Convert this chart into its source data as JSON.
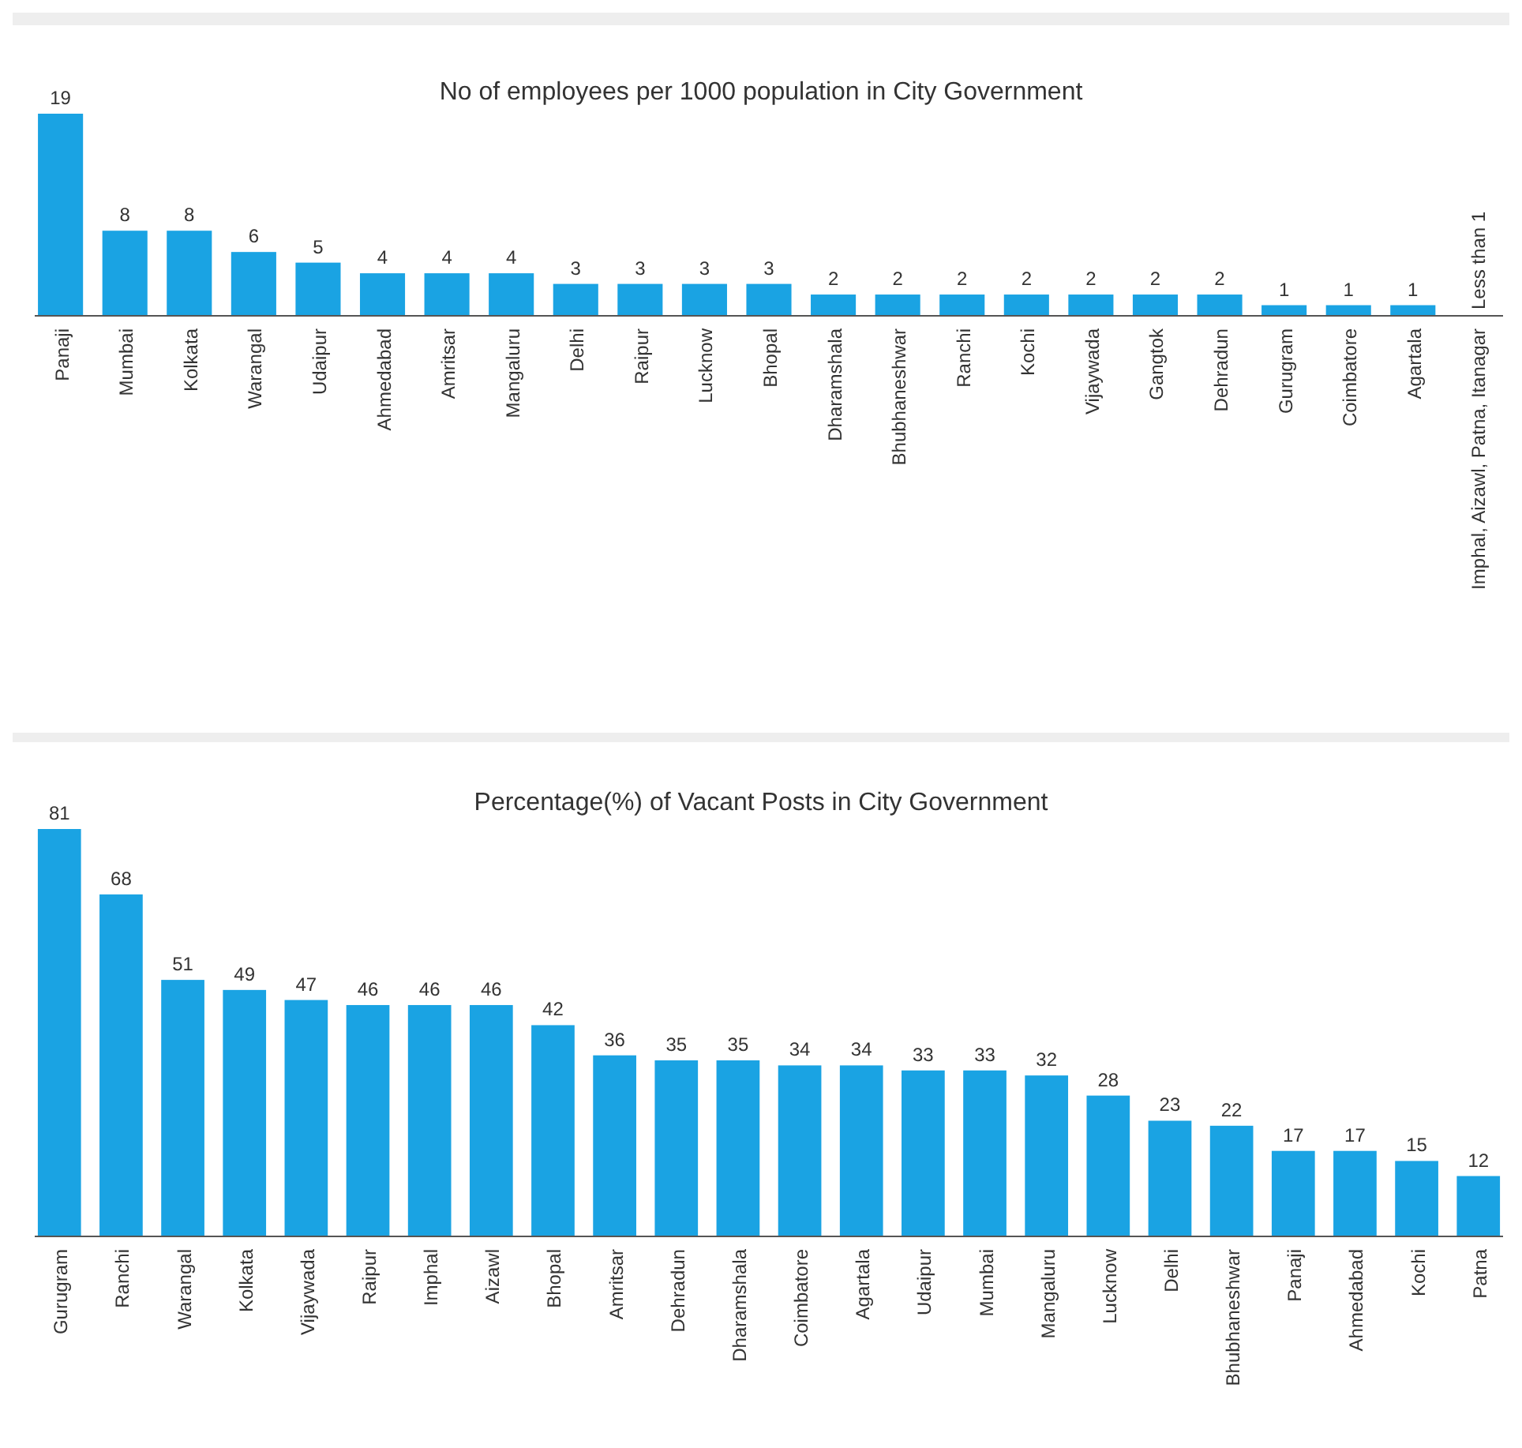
{
  "chart_data": [
    {
      "type": "bar",
      "title": "No of employees per 1000 population in City Government",
      "categories": [
        "Panaji",
        "Mumbai",
        "Kolkata",
        "Warangal",
        "Udaipur",
        "Ahmedabad",
        "Amritsar",
        "Mangaluru",
        "Delhi",
        "Raipur",
        "Lucknow",
        "Bhopal",
        "Dharamshala",
        "Bhubhaneshwar",
        "Ranchi",
        "Kochi",
        "Vijaywada",
        "Gangtok",
        "Dehradun",
        "Gurugram",
        "Coimbatore",
        "Agartala",
        "Imphal, Aizawl, Patna, Itanagar"
      ],
      "values": [
        19,
        8,
        8,
        6,
        5,
        4,
        4,
        4,
        3,
        3,
        3,
        3,
        2,
        2,
        2,
        2,
        2,
        2,
        2,
        1,
        1,
        1,
        null
      ],
      "value_labels": [
        "19",
        "8",
        "8",
        "6",
        "5",
        "4",
        "4",
        "4",
        "3",
        "3",
        "3",
        "3",
        "2",
        "2",
        "2",
        "2",
        "2",
        "2",
        "2",
        "1",
        "1",
        "1",
        "Less than 1"
      ],
      "color": "#1aa3e3"
    },
    {
      "type": "bar",
      "title": "Percentage(%) of Vacant Posts in City Government",
      "categories": [
        "Gurugram",
        "Ranchi",
        "Warangal",
        "Kolkata",
        "Vijaywada",
        "Raipur",
        "Imphal",
        "Aizawl",
        "Bhopal",
        "Amritsar",
        "Dehradun",
        "Dharamshala",
        "Coimbatore",
        "Agartala",
        "Udaipur",
        "Mumbai",
        "Mangaluru",
        "Lucknow",
        "Delhi",
        "Bhubhaneshwar",
        "Panaji",
        "Ahmedabad",
        "Kochi",
        "Patna"
      ],
      "values": [
        81,
        68,
        51,
        49,
        47,
        46,
        46,
        46,
        42,
        36,
        35,
        35,
        34,
        34,
        33,
        33,
        32,
        28,
        23,
        22,
        17,
        17,
        15,
        12
      ],
      "data_labels": true,
      "color": "#1aa3e3"
    }
  ]
}
